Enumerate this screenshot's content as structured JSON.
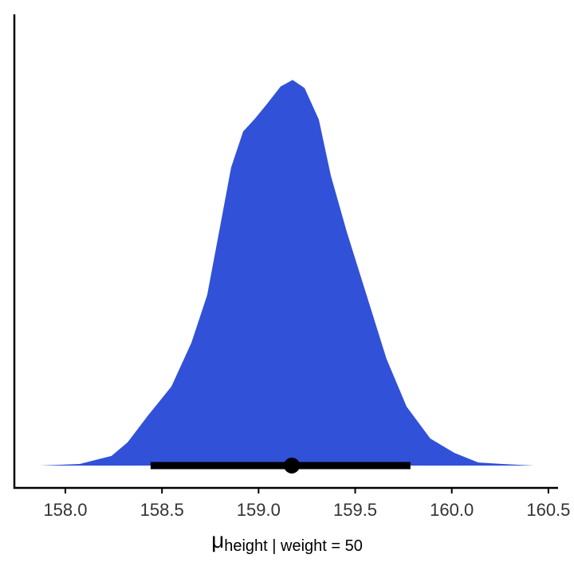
{
  "chart_data": {
    "type": "density",
    "x_label": {
      "symbol": "μ",
      "subscript": "height | weight = 50"
    },
    "x": [
      157.868,
      158.074,
      158.239,
      158.322,
      158.425,
      158.549,
      158.652,
      158.734,
      158.796,
      158.858,
      158.92,
      158.982,
      159.044,
      159.114,
      159.176,
      159.238,
      159.312,
      159.374,
      159.456,
      159.559,
      159.662,
      159.766,
      159.889,
      160.013,
      160.137,
      160.261,
      160.426
    ],
    "values": [
      0,
      0.004,
      0.025,
      0.06,
      0.128,
      0.205,
      0.318,
      0.442,
      0.607,
      0.773,
      0.866,
      0.9,
      0.938,
      0.983,
      1.0,
      0.979,
      0.897,
      0.752,
      0.607,
      0.442,
      0.277,
      0.153,
      0.07,
      0.033,
      0.008,
      0.004,
      0
    ],
    "color": "#3151d9",
    "point": 159.172,
    "interval": [
      158.441,
      159.786
    ],
    "xlim": [
      157.736,
      160.55
    ],
    "ylim": [
      -0.058,
      1.17
    ],
    "xticks": [
      {
        "value": 158,
        "label": "158.0"
      },
      158.5,
      {
        "value": 159,
        "label": "159.0"
      },
      159.5,
      {
        "value": 160,
        "label": "160.0"
      },
      160.5
    ]
  }
}
